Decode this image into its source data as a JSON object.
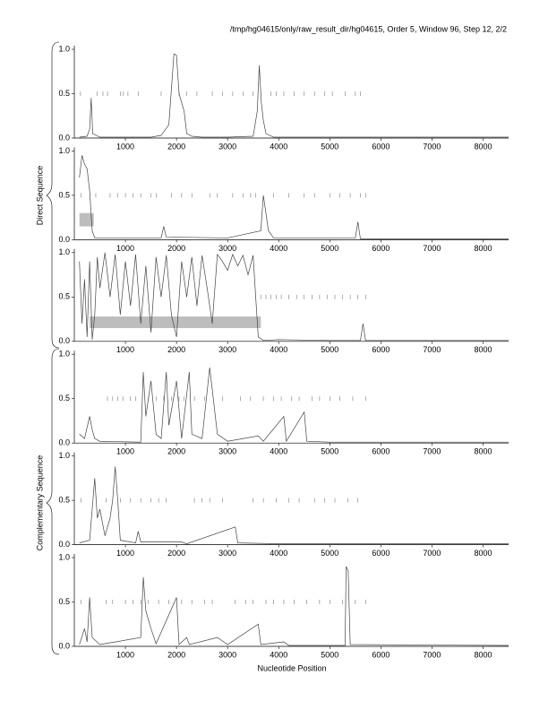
{
  "title": "/tmp/hg04615/only/raw_result_dir/hg04615, Order 5, Window 96, Step 12, 2/2",
  "xlabel": "Nucleotide Position",
  "group_labels": [
    "Direct Sequence",
    "Complementary Sequence"
  ],
  "chart_data": [
    {
      "type": "line",
      "color": "#444444",
      "x": [
        100,
        250,
        300,
        330,
        360,
        500,
        1000,
        1500,
        1700,
        1850,
        1950,
        2000,
        2050,
        2100,
        2150,
        2200,
        2300,
        2500,
        3000,
        3500,
        3580,
        3620,
        3660,
        3700,
        3750,
        3900,
        4500,
        5000,
        5500,
        6000,
        7000,
        8000,
        8500
      ],
      "values": [
        0.01,
        0.02,
        0.1,
        0.45,
        0.05,
        0.01,
        0.01,
        0.01,
        0.03,
        0.15,
        0.95,
        0.93,
        0.5,
        0.4,
        0.3,
        0.05,
        0.02,
        0.01,
        0.01,
        0.02,
        0.3,
        0.82,
        0.4,
        0.2,
        0.05,
        0.01,
        0.01,
        0.01,
        0.01,
        0.01,
        0.01,
        0.01,
        0.01
      ],
      "markers": [
        120,
        450,
        560,
        650,
        900,
        960,
        1050,
        1250,
        1700,
        2050,
        2200,
        2400,
        2700,
        2900,
        3100,
        3300,
        3500,
        3850,
        3950,
        4100,
        4300,
        4500,
        4700,
        4900,
        5050,
        5300,
        5500,
        5600
      ],
      "xlim": [
        0,
        8500
      ],
      "ylim": [
        0,
        1
      ],
      "xticks": [
        1000,
        2000,
        3000,
        4000,
        5000,
        6000,
        7000,
        8000
      ],
      "yticks": [
        {
          "value": 0,
          "label": "0.0"
        },
        0.5,
        {
          "value": 1,
          "label": "1.0"
        }
      ]
    },
    {
      "type": "line",
      "color": "#444444",
      "x": [
        100,
        150,
        200,
        250,
        300,
        350,
        400,
        1000,
        1700,
        1750,
        1800,
        3000,
        3650,
        3700,
        3750,
        3800,
        3900,
        5500,
        5550,
        5600,
        8500
      ],
      "values": [
        0.7,
        0.95,
        0.85,
        0.8,
        0.55,
        0.1,
        0.02,
        0.02,
        0.02,
        0.15,
        0.03,
        0.02,
        0.1,
        0.5,
        0.3,
        0.1,
        0.02,
        0.02,
        0.2,
        0.01,
        0.01
      ],
      "markers": [
        130,
        420,
        700,
        850,
        1000,
        1150,
        1300,
        1500,
        1600,
        1900,
        2100,
        2300,
        2650,
        2800,
        3100,
        3300,
        3450,
        3550,
        3900,
        4200,
        4500,
        4700,
        5000,
        5200,
        5400,
        5600,
        5700
      ],
      "highlight": {
        "x": [
          100,
          380
        ],
        "y": [
          0.15,
          0.3
        ]
      },
      "xlim": [
        0,
        8500
      ],
      "ylim": [
        0,
        1
      ],
      "xticks": [
        1000,
        2000,
        3000,
        4000,
        5000,
        6000,
        7000,
        8000
      ],
      "yticks": [
        {
          "value": 0,
          "label": "0.0"
        },
        0.5,
        {
          "value": 1,
          "label": "1.0"
        }
      ]
    },
    {
      "type": "line",
      "color": "#444444",
      "x": [
        100,
        150,
        200,
        250,
        300,
        350,
        400,
        450,
        500,
        600,
        700,
        800,
        900,
        1000,
        1100,
        1200,
        1300,
        1400,
        1500,
        1600,
        1700,
        1800,
        1900,
        2000,
        2100,
        2200,
        2300,
        2400,
        2500,
        2600,
        2700,
        2800,
        2900,
        3000,
        3100,
        3200,
        3300,
        3400,
        3500,
        3550,
        3600,
        3700,
        4000,
        5000,
        5600,
        5650,
        5700,
        8500
      ],
      "values": [
        0.9,
        0.2,
        0.7,
        0.05,
        0.9,
        0.02,
        0.3,
        0.95,
        0.6,
        1.0,
        0.5,
        0.98,
        0.3,
        0.9,
        0.4,
        0.98,
        0.2,
        0.85,
        0.1,
        0.95,
        0.5,
        0.97,
        0.3,
        0.05,
        0.9,
        0.5,
        0.95,
        0.4,
        0.97,
        0.6,
        0.2,
        0.98,
        0.9,
        0.8,
        0.98,
        0.85,
        0.97,
        0.75,
        0.97,
        0.5,
        0.05,
        0.01,
        0.02,
        0.01,
        0.01,
        0.2,
        0.01,
        0.01
      ],
      "markers": [
        3650,
        3750,
        3850,
        3950,
        4050,
        4200,
        4350,
        4500,
        4650,
        4800,
        4950,
        5100,
        5250,
        5400,
        5550,
        5700
      ],
      "highlight": {
        "x": [
          300,
          3650
        ],
        "y": [
          0.15,
          0.28
        ]
      },
      "xlim": [
        0,
        8500
      ],
      "ylim": [
        0,
        1
      ],
      "xticks": [
        1000,
        2000,
        3000,
        4000,
        5000,
        6000,
        7000,
        8000
      ],
      "yticks": [
        {
          "value": 0,
          "label": "0.0"
        },
        0.5,
        {
          "value": 1,
          "label": "1.0"
        }
      ]
    },
    {
      "type": "line",
      "color": "#444444",
      "x": [
        100,
        200,
        300,
        350,
        400,
        500,
        1300,
        1350,
        1400,
        1500,
        1600,
        1700,
        1800,
        1850,
        2000,
        2100,
        2250,
        2300,
        2500,
        2650,
        2700,
        2800,
        3000,
        3600,
        3700,
        4100,
        4150,
        4500,
        4550,
        5000,
        8500
      ],
      "values": [
        0.1,
        0.05,
        0.3,
        0.15,
        0.05,
        0.02,
        0.01,
        0.8,
        0.3,
        0.7,
        0.1,
        0.05,
        0.8,
        0.2,
        0.7,
        0.05,
        0.8,
        0.1,
        0.05,
        0.85,
        0.6,
        0.1,
        0.02,
        0.08,
        0.02,
        0.3,
        0.02,
        0.35,
        0.02,
        0.01,
        0.01
      ],
      "markers": [
        650,
        750,
        850,
        950,
        1100,
        1200,
        1450,
        1600,
        1750,
        1900,
        2050,
        2150,
        2350,
        2550,
        2900,
        3250,
        3450,
        3700,
        3900,
        4050,
        4250,
        4400,
        4650,
        4800,
        5000,
        5200,
        5450,
        5700
      ],
      "xlim": [
        0,
        8500
      ],
      "ylim": [
        0,
        1
      ],
      "xticks": [
        1000,
        2000,
        3000,
        4000,
        5000,
        6000,
        7000,
        8000
      ],
      "yticks": [
        {
          "value": 0,
          "label": "0.0"
        },
        0.5,
        {
          "value": 1,
          "label": "1.0"
        }
      ]
    },
    {
      "type": "line",
      "color": "#444444",
      "x": [
        100,
        300,
        400,
        450,
        500,
        600,
        700,
        750,
        800,
        850,
        900,
        1200,
        1250,
        1300,
        2100,
        2200,
        3150,
        3200,
        4000,
        8500
      ],
      "values": [
        0.02,
        0.05,
        0.75,
        0.3,
        0.4,
        0.1,
        0.3,
        0.5,
        0.88,
        0.5,
        0.05,
        0.02,
        0.15,
        0.03,
        0.03,
        0.01,
        0.2,
        0.02,
        0.01,
        0.01
      ],
      "markers": [
        130,
        620,
        900,
        1100,
        1300,
        1500,
        1650,
        1800,
        2350,
        2500,
        2650,
        2900,
        3500,
        3700,
        3950,
        4200,
        4400,
        4700,
        4900,
        5100,
        5350,
        5550
      ],
      "xlim": [
        0,
        8500
      ],
      "ylim": [
        0,
        1
      ],
      "xticks": [
        1000,
        2000,
        3000,
        4000,
        5000,
        6000,
        7000,
        8000
      ],
      "yticks": [
        {
          "value": 0,
          "label": "0.0"
        },
        0.5,
        {
          "value": 1,
          "label": "1.0"
        }
      ]
    },
    {
      "type": "line",
      "color": "#444444",
      "x": [
        100,
        200,
        250,
        300,
        350,
        500,
        1300,
        1350,
        1400,
        1500,
        1600,
        2000,
        2050,
        2200,
        2250,
        2800,
        3000,
        3600,
        3650,
        4100,
        4200,
        5300,
        5320,
        5360,
        5400,
        8500
      ],
      "values": [
        0.02,
        0.2,
        0.05,
        0.55,
        0.1,
        0.02,
        0.1,
        0.78,
        0.4,
        0.2,
        0.03,
        0.55,
        0.02,
        0.1,
        0.02,
        0.1,
        0.02,
        0.25,
        0.02,
        0.05,
        0.01,
        0.01,
        0.9,
        0.85,
        0.02,
        0.01
      ],
      "markers": [
        130,
        620,
        750,
        1000,
        1150,
        1300,
        1450,
        1650,
        1850,
        2100,
        2300,
        2550,
        2700,
        3150,
        3350,
        3500,
        3750,
        3900,
        4100,
        4300,
        4550,
        4800,
        5000,
        5250,
        5500,
        5700
      ],
      "xlim": [
        0,
        8500
      ],
      "ylim": [
        0,
        1
      ],
      "xticks": [
        1000,
        2000,
        3000,
        4000,
        5000,
        6000,
        7000,
        8000
      ],
      "yticks": [
        {
          "value": 0,
          "label": "0.0"
        },
        0.5,
        {
          "value": 1,
          "label": "1.0"
        }
      ]
    }
  ]
}
